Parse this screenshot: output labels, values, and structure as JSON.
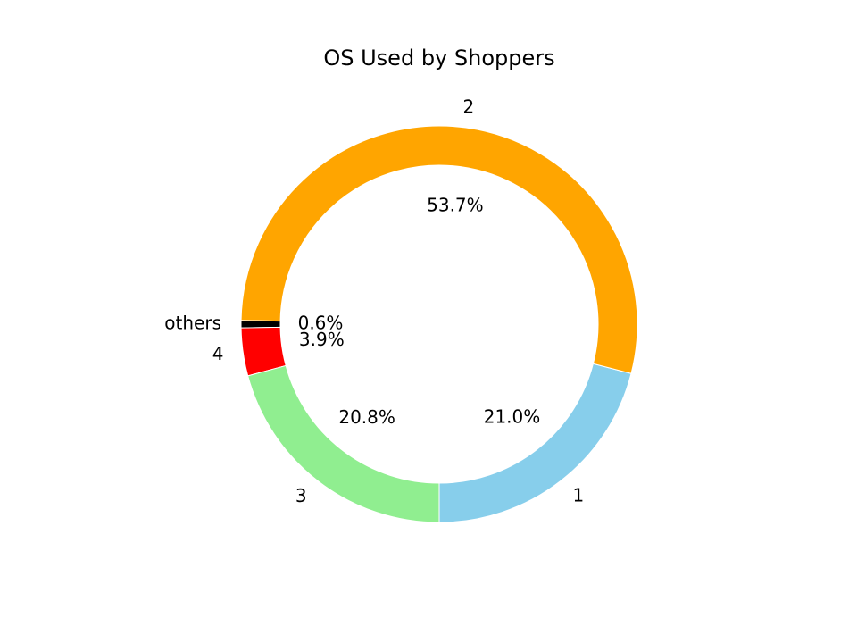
{
  "chart_data": {
    "type": "pie",
    "title": "OS Used by Shoppers",
    "labels": [
      "1",
      "2",
      "others",
      "4",
      "3"
    ],
    "values": [
      21.0,
      53.7,
      0.6,
      3.9,
      20.8
    ],
    "percent_labels": [
      "21.0%",
      "53.7%",
      "0.6%",
      "3.9%",
      "20.8%"
    ],
    "colors": [
      "#87CEEB",
      "#FFA500",
      "#000000",
      "#FF0000",
      "#90EE90"
    ],
    "donut": true,
    "legend": false
  }
}
